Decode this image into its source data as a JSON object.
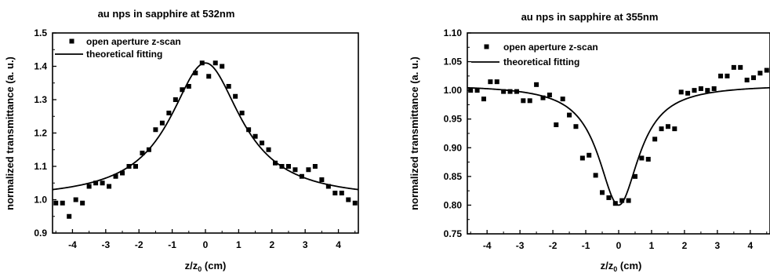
{
  "chart_data": [
    {
      "type": "scatter",
      "title": "au nps in sapphire at 532nm",
      "xlabel": "z/z",
      "xlabel_sub": "0",
      "xlabel_unit": " (cm)",
      "ylabel": "normalized transmittance (a. u.)",
      "xlim": [
        -4.6,
        4.6
      ],
      "ylim": [
        0.9,
        1.5
      ],
      "xticks": [
        -4,
        -3,
        -2,
        -1,
        0,
        1,
        2,
        3,
        4
      ],
      "xtick_labels": [
        "-4",
        "-3",
        "-2",
        "-1",
        "0",
        "1",
        "2",
        "3",
        "4"
      ],
      "yticks": [
        0.9,
        1.0,
        1.1,
        1.2,
        1.3,
        1.4,
        1.5
      ],
      "ytick_labels": [
        "0.9",
        "1.0",
        "1.1",
        "1.2",
        "1.3",
        "1.4",
        "1.5"
      ],
      "series": [
        {
          "name": "open aperture z-scan",
          "kind": "points",
          "x": [
            -4.5,
            -4.3,
            -4.1,
            -3.9,
            -3.7,
            -3.5,
            -3.3,
            -3.1,
            -2.9,
            -2.7,
            -2.5,
            -2.3,
            -2.1,
            -1.9,
            -1.7,
            -1.5,
            -1.3,
            -1.1,
            -0.9,
            -0.7,
            -0.5,
            -0.3,
            -0.1,
            0.1,
            0.3,
            0.5,
            0.7,
            0.9,
            1.1,
            1.3,
            1.5,
            1.7,
            1.9,
            2.1,
            2.3,
            2.5,
            2.7,
            2.9,
            3.1,
            3.3,
            3.5,
            3.7,
            3.9,
            4.1,
            4.3,
            4.5
          ],
          "y": [
            0.99,
            0.99,
            0.95,
            1.0,
            0.99,
            1.04,
            1.05,
            1.05,
            1.04,
            1.07,
            1.08,
            1.1,
            1.1,
            1.14,
            1.15,
            1.21,
            1.23,
            1.26,
            1.3,
            1.33,
            1.34,
            1.38,
            1.41,
            1.37,
            1.41,
            1.4,
            1.34,
            1.31,
            1.26,
            1.21,
            1.19,
            1.17,
            1.15,
            1.11,
            1.1,
            1.1,
            1.09,
            1.07,
            1.09,
            1.1,
            1.06,
            1.04,
            1.02,
            1.02,
            1.0,
            0.99
          ]
        },
        {
          "name": "theoretical fitting",
          "kind": "line",
          "model": {
            "baseline": 1.0,
            "amplitude": 0.41,
            "z0_cm": 1.3
          }
        }
      ],
      "legend": "top-left"
    },
    {
      "type": "scatter",
      "title": "au nps in sapphire at 355nm",
      "xlabel": "z/z",
      "xlabel_sub": "0",
      "xlabel_unit": " (cm)",
      "ylabel": "normalized transmittance (a. u.)",
      "xlim": [
        -4.6,
        4.6
      ],
      "ylim": [
        0.75,
        1.1
      ],
      "xticks": [
        -4,
        -3,
        -2,
        -1,
        0,
        1,
        2,
        3,
        4
      ],
      "xtick_labels": [
        "-4",
        "-3",
        "-2",
        "-1",
        "0",
        "1",
        "2",
        "3",
        "4"
      ],
      "yticks": [
        0.75,
        0.8,
        0.85,
        0.9,
        0.95,
        1.0,
        1.05,
        1.1
      ],
      "ytick_labels": [
        "0.75",
        "0.80",
        "0.85",
        "0.90",
        "0.95",
        "1.00",
        "1.05",
        "1.10"
      ],
      "series": [
        {
          "name": "open aperture z-scan",
          "kind": "points",
          "x": [
            -4.5,
            -4.3,
            -4.1,
            -3.9,
            -3.7,
            -3.5,
            -3.3,
            -3.1,
            -2.9,
            -2.7,
            -2.5,
            -2.3,
            -2.1,
            -1.9,
            -1.7,
            -1.5,
            -1.3,
            -1.1,
            -0.9,
            -0.7,
            -0.5,
            -0.3,
            -0.1,
            0.1,
            0.3,
            0.5,
            0.7,
            0.9,
            1.1,
            1.3,
            1.5,
            1.7,
            1.9,
            2.1,
            2.3,
            2.5,
            2.7,
            2.9,
            3.1,
            3.3,
            3.5,
            3.7,
            3.9,
            4.1,
            4.3,
            4.5
          ],
          "y": [
            1.0,
            1.0,
            0.985,
            1.015,
            1.015,
            0.998,
            0.998,
            0.998,
            0.982,
            0.982,
            1.01,
            0.987,
            0.992,
            0.94,
            0.985,
            0.957,
            0.937,
            0.882,
            0.887,
            0.852,
            0.822,
            0.813,
            0.803,
            0.808,
            0.808,
            0.85,
            0.882,
            0.88,
            0.915,
            0.933,
            0.937,
            0.933,
            0.997,
            0.995,
            1.0,
            1.003,
            1.0,
            1.003,
            1.025,
            1.025,
            1.04,
            1.04,
            1.018,
            1.022,
            1.03,
            1.035
          ]
        },
        {
          "name": "theoretical fitting",
          "kind": "line",
          "model": {
            "baseline": 1.01,
            "amplitude": -0.21,
            "z0_cm": 0.75
          }
        }
      ],
      "legend": "top-left"
    }
  ]
}
